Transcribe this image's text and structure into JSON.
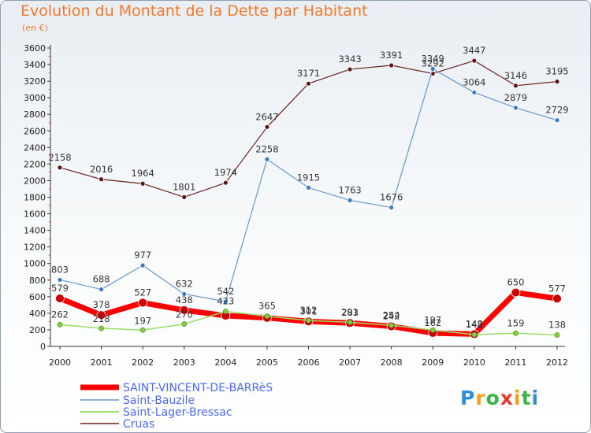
{
  "title": "Evolution du Montant de la Dette par Habitant",
  "subtitle": "(en €)",
  "logo": "Proxiti",
  "chart_data": {
    "type": "line",
    "x": [
      "2000",
      "2001",
      "2002",
      "2003",
      "2004",
      "2005",
      "2006",
      "2007",
      "2008",
      "2009",
      "2010",
      "2011",
      "2012"
    ],
    "ylim": [
      0,
      3600
    ],
    "yticks": [
      0,
      200,
      400,
      600,
      800,
      1000,
      1200,
      1400,
      1600,
      1800,
      2000,
      2200,
      2400,
      2600,
      2800,
      3000,
      3200,
      3400,
      3600
    ],
    "grid": false,
    "legend_placement": "bottom-left",
    "series": [
      {
        "name": "SAINT-VINCENT-DE-BARRèS",
        "color": "#ff0000",
        "values": [
          579,
          378,
          527,
          438,
          370,
          345,
          301,
          283,
          242,
          162,
          148,
          650,
          577
        ],
        "labels": [
          "579",
          "378",
          "527",
          "438",
          "",
          "",
          "301",
          "283",
          "242",
          "162",
          "148",
          "650",
          "577"
        ]
      },
      {
        "name": "Saint-Bauzile",
        "color": "#6699cc",
        "values": [
          803,
          688,
          977,
          632,
          542,
          2258,
          1915,
          1763,
          1676,
          3349,
          3064,
          2879,
          2729
        ],
        "labels": [
          "803",
          "688",
          "977",
          "632",
          "542",
          "2258",
          "1915",
          "1763",
          "1676",
          "3349",
          "3064",
          "2879",
          "2729"
        ]
      },
      {
        "name": "Saint-Lager-Bressac",
        "color": "#99dd66",
        "values": [
          262,
          218,
          197,
          270,
          423,
          365,
          312,
          291,
          254,
          197,
          142,
          159,
          138
        ],
        "labels": [
          "262",
          "218",
          "197",
          "270",
          "423",
          "365",
          "312",
          "291",
          "254",
          "197",
          "142",
          "159",
          "138"
        ]
      },
      {
        "name": "Cruas",
        "color": "#6b1f1f",
        "values": [
          2158,
          2016,
          1964,
          1801,
          1974,
          2647,
          3171,
          3343,
          3391,
          3292,
          3447,
          3146,
          3195
        ],
        "labels": [
          "2158",
          "2016",
          "1964",
          "1801",
          "1974",
          "2647",
          "3171",
          "3343",
          "3391",
          "3292",
          "3447",
          "3146",
          "3195"
        ]
      }
    ],
    "legend_colors": {
      "SAINT-VINCENT-DE-BARRèS": "#4a69ff",
      "Saint-Bauzile": "#4a69ff",
      "Saint-Lager-Bressac": "#4a69ff",
      "Cruas": "#4a69ff"
    }
  }
}
